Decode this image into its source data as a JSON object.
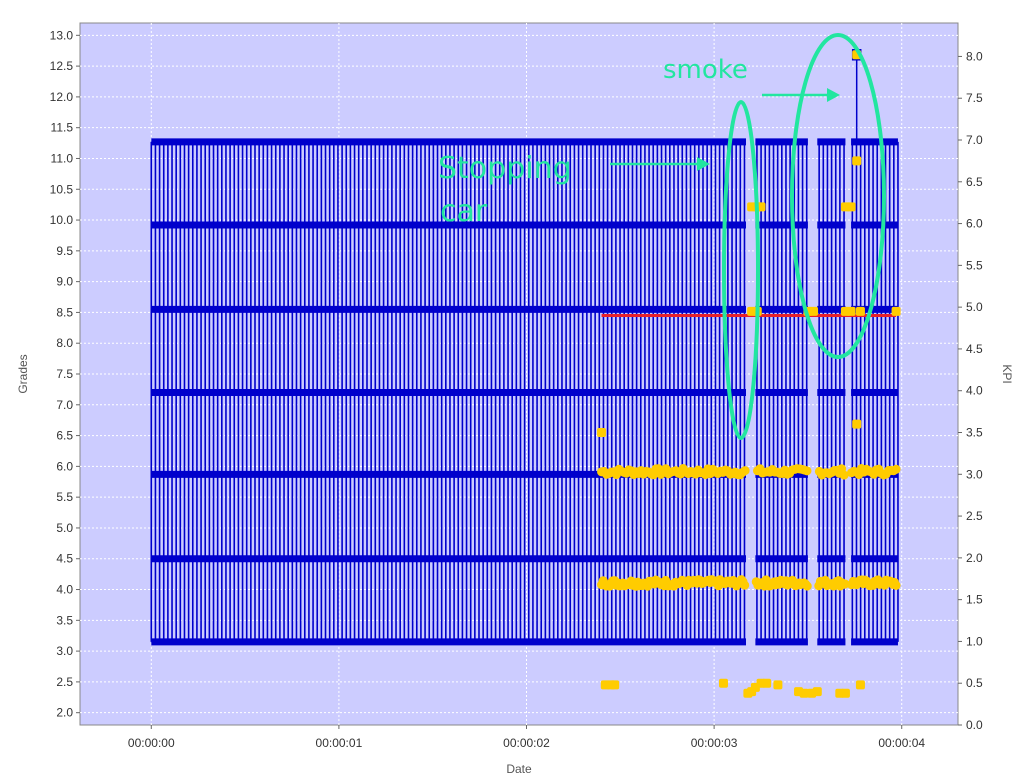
{
  "chart_data": {
    "type": "scatter",
    "title": "",
    "xlabel": "Date",
    "ylabel_left": "Grades",
    "ylabel_right": "KPI",
    "x_ticks": [
      "00:00:00",
      "00:00:01",
      "00:00:02",
      "00:00:03",
      "00:00:04"
    ],
    "xlim_seconds": [
      -0.38,
      4.3
    ],
    "ylim_left": [
      1.8,
      13.2
    ],
    "ylim_right": [
      0,
      8.4
    ],
    "y_left_ticks": [
      "2.0",
      "2.5",
      "3.0",
      "3.5",
      "4.0",
      "4.5",
      "5.0",
      "5.5",
      "6.0",
      "6.5",
      "7.0",
      "7.5",
      "8.0",
      "8.5",
      "9.0",
      "9.5",
      "10.0",
      "10.5",
      "11.0",
      "11.5",
      "12.0",
      "12.5",
      "13.0"
    ],
    "y_right_ticks": [
      "0.0",
      "0.5",
      "1.0",
      "1.5",
      "2.0",
      "2.5",
      "3.0",
      "3.5",
      "4.0",
      "4.5",
      "5.0",
      "5.5",
      "6.0",
      "6.5",
      "7.0",
      "7.5",
      "8.0"
    ],
    "grid": true,
    "colors": {
      "plot_bg": "#ccccff",
      "grid": "#ffffff",
      "blue_series": "#0000cc",
      "orange_series": "#ffcc00",
      "red_line": "#e8202a",
      "annotation": "#22e6a0"
    },
    "series": [
      {
        "kind": "stepped-bands",
        "color": "#0000cc",
        "x_range": [
          0.0,
          3.98
        ],
        "band_levels_grades": [
          3.15,
          4.5,
          5.87,
          7.2,
          8.55,
          9.92,
          11.27
        ],
        "oscillation_grades": [
          3.15,
          11.27
        ],
        "gaps_seconds": [
          3.17,
          3.22,
          3.5,
          3.55,
          3.7,
          3.73
        ]
      },
      {
        "kind": "reference-line",
        "color": "#e8202a",
        "x_range": [
          2.4,
          3.97
        ],
        "value_kpi": 4.9
      },
      {
        "kind": "points",
        "color": "#ffcc00",
        "clusters": [
          {
            "x_range": [
              2.4,
              3.97
            ],
            "y_kpi": 3.03,
            "count": 120
          },
          {
            "x_range": [
              2.4,
              3.97
            ],
            "y_kpi": 1.7,
            "count": 180
          },
          {
            "x": [
              2.42,
              2.45,
              2.47,
              3.05,
              3.18,
              3.2,
              3.22,
              3.25,
              3.28,
              3.34,
              3.45,
              3.48,
              3.52,
              3.55,
              3.67,
              3.7,
              3.78
            ],
            "y_kpi": [
              0.48,
              0.48,
              0.48,
              0.5,
              0.38,
              0.4,
              0.45,
              0.5,
              0.5,
              0.48,
              0.4,
              0.38,
              0.38,
              0.4,
              0.38,
              0.38,
              0.48
            ]
          },
          {
            "x": [
              2.4
            ],
            "y_kpi": [
              3.5
            ]
          },
          {
            "x": [
              3.2,
              3.23,
              3.25
            ],
            "y_kpi": [
              6.2,
              6.2,
              6.2
            ]
          },
          {
            "x": [
              3.2,
              3.23,
              3.5,
              3.53,
              3.7,
              3.73,
              3.78
            ],
            "y_kpi": [
              4.95,
              4.95,
              4.95,
              4.95,
              4.95,
              4.95,
              4.95
            ]
          },
          {
            "x": [
              3.7,
              3.73
            ],
            "y_kpi": [
              6.2,
              6.2
            ]
          },
          {
            "x": [
              3.76
            ],
            "y_kpi": [
              6.75
            ]
          },
          {
            "x": [
              3.76
            ],
            "y_kpi": [
              3.6
            ]
          },
          {
            "x": [
              3.76
            ],
            "y_kpi": [
              8.02
            ]
          },
          {
            "x": [
              3.97
            ],
            "y_kpi": [
              4.95
            ]
          }
        ]
      }
    ],
    "annotations": {
      "smoke_label": "smoke",
      "stopping_line1": "Stopping",
      "stopping_line2": "car"
    }
  }
}
